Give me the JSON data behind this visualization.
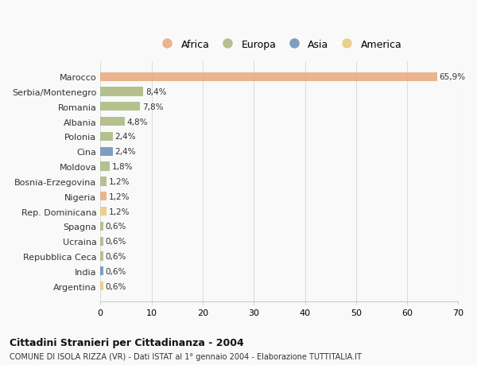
{
  "countries": [
    "Marocco",
    "Serbia/Montenegro",
    "Romania",
    "Albania",
    "Polonia",
    "Cina",
    "Moldova",
    "Bosnia-Erzegovina",
    "Nigeria",
    "Rep. Dominicana",
    "Spagna",
    "Ucraina",
    "Repubblica Ceca",
    "India",
    "Argentina"
  ],
  "values": [
    65.9,
    8.4,
    7.8,
    4.8,
    2.4,
    2.4,
    1.8,
    1.2,
    1.2,
    1.2,
    0.6,
    0.6,
    0.6,
    0.6,
    0.6
  ],
  "labels": [
    "65,9%",
    "8,4%",
    "7,8%",
    "4,8%",
    "2,4%",
    "2,4%",
    "1,8%",
    "1,2%",
    "1,2%",
    "1,2%",
    "0,6%",
    "0,6%",
    "0,6%",
    "0,6%",
    "0,6%"
  ],
  "continents": [
    "Africa",
    "Europa",
    "Europa",
    "Europa",
    "Europa",
    "Asia",
    "Europa",
    "Europa",
    "Africa",
    "America",
    "Europa",
    "Europa",
    "Europa",
    "Asia",
    "America"
  ],
  "colors": {
    "Africa": "#E8A87C",
    "Europa": "#A8B87C",
    "Asia": "#6A8DB8",
    "America": "#E8C87C"
  },
  "legend": [
    "Africa",
    "Europa",
    "Asia",
    "America"
  ],
  "legend_colors": [
    "#E8A87C",
    "#A8B87C",
    "#6A8DB8",
    "#E8C87C"
  ],
  "title": "Cittadini Stranieri per Cittadinanza - 2004",
  "subtitle": "COMUNE DI ISOLA RIZZA (VR) - Dati ISTAT al 1° gennaio 2004 - Elaborazione TUTTITALIA.IT",
  "xlim": [
    0,
    70
  ],
  "xticks": [
    0,
    10,
    20,
    30,
    40,
    50,
    60,
    70
  ],
  "background_color": "#f9f9f9",
  "grid_color": "#dddddd"
}
